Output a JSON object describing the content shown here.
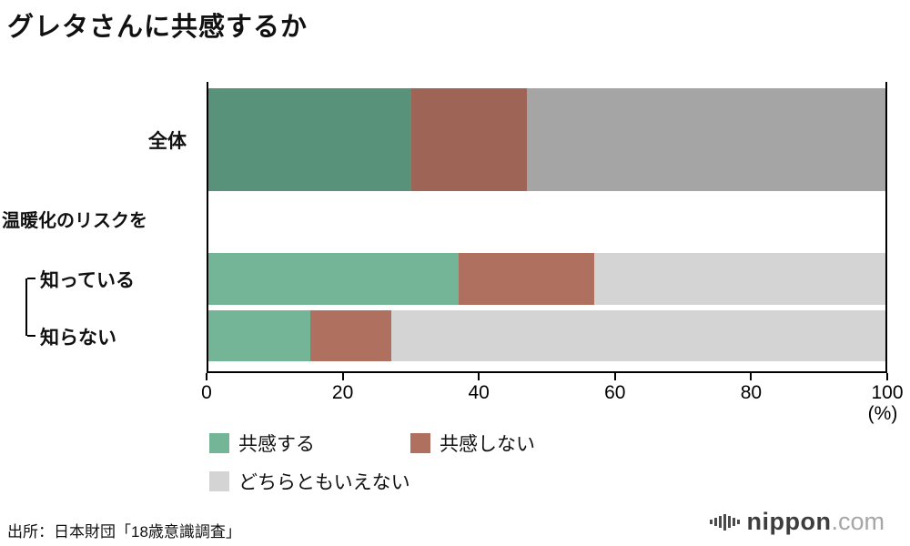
{
  "title": "グレタさんに共感するか",
  "chart_data": {
    "type": "bar",
    "orientation": "horizontal",
    "stacked": true,
    "title": "グレタさんに共感するか",
    "categories": [
      "全体",
      "知っている",
      "知らない"
    ],
    "group_label": "温暖化のリスクを",
    "series": [
      {
        "name": "共感する",
        "values": [
          30,
          37,
          15
        ],
        "colors": [
          "#58927a",
          "#74b598",
          "#74b598"
        ]
      },
      {
        "name": "共感しない",
        "values": [
          17,
          20,
          12
        ],
        "colors": [
          "#9e6455",
          "#b0705f",
          "#b0705f"
        ]
      },
      {
        "name": "どちらともいえない",
        "values": [
          53,
          43,
          73
        ],
        "colors": [
          "#a5a5a5",
          "#d4d4d4",
          "#d4d4d4"
        ]
      }
    ],
    "xticks": [
      0,
      20,
      40,
      60,
      80,
      100
    ],
    "xlim": [
      0,
      100
    ],
    "axis_unit_label": "(%)",
    "legend_position": "bottom",
    "grid": false
  },
  "source": "出所：日本財団「18歳意識調査」",
  "logo": {
    "text": "nippon",
    "suffix": ".com"
  }
}
